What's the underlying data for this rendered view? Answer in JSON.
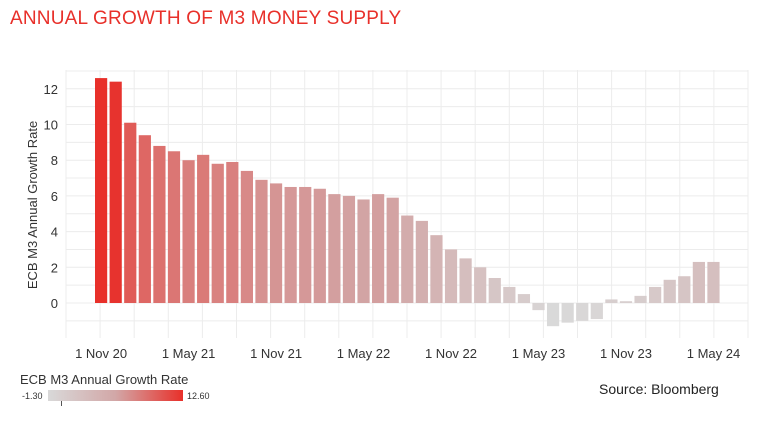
{
  "title": "ANNUAL GROWTH OF M3 MONEY SUPPLY",
  "source": "Source: Bloomberg",
  "legend": {
    "title": "ECB M3 Annual Growth Rate",
    "min_label": "-1.30",
    "max_label": "12.60",
    "low_color": "#d9d9d9",
    "mid_color": "#d2a7a7",
    "high_color": "#e8302a"
  },
  "chart_data": {
    "type": "bar",
    "ylabel": "ECB M3 Annual Growth Rate",
    "ylim": [
      -1.5,
      13
    ],
    "yticks": [
      0,
      2,
      4,
      6,
      8,
      10,
      12
    ],
    "grid": true,
    "color_scale": {
      "min": -1.3,
      "max": 12.6
    },
    "x_tick_labels": [
      {
        "label": "1 Nov 20",
        "index": 0
      },
      {
        "label": "1 May 21",
        "index": 6
      },
      {
        "label": "1 Nov 21",
        "index": 12
      },
      {
        "label": "1 May 22",
        "index": 18
      },
      {
        "label": "1 Nov 22",
        "index": 24
      },
      {
        "label": "1 May 23",
        "index": 30
      },
      {
        "label": "1 Nov 23",
        "index": 36
      },
      {
        "label": "1 May 24",
        "index": 42
      }
    ],
    "values": [
      12.6,
      12.4,
      10.1,
      9.4,
      8.8,
      8.5,
      8.0,
      8.3,
      7.8,
      7.9,
      7.4,
      6.9,
      6.7,
      6.5,
      6.5,
      6.4,
      6.1,
      6.0,
      5.8,
      6.1,
      5.9,
      4.9,
      4.6,
      3.8,
      3.0,
      2.5,
      2.0,
      1.4,
      0.9,
      0.5,
      -0.4,
      -1.3,
      -1.1,
      -1.0,
      -0.9,
      0.2,
      0.1,
      0.4,
      0.9,
      1.3,
      1.5,
      2.3,
      2.3
    ]
  }
}
